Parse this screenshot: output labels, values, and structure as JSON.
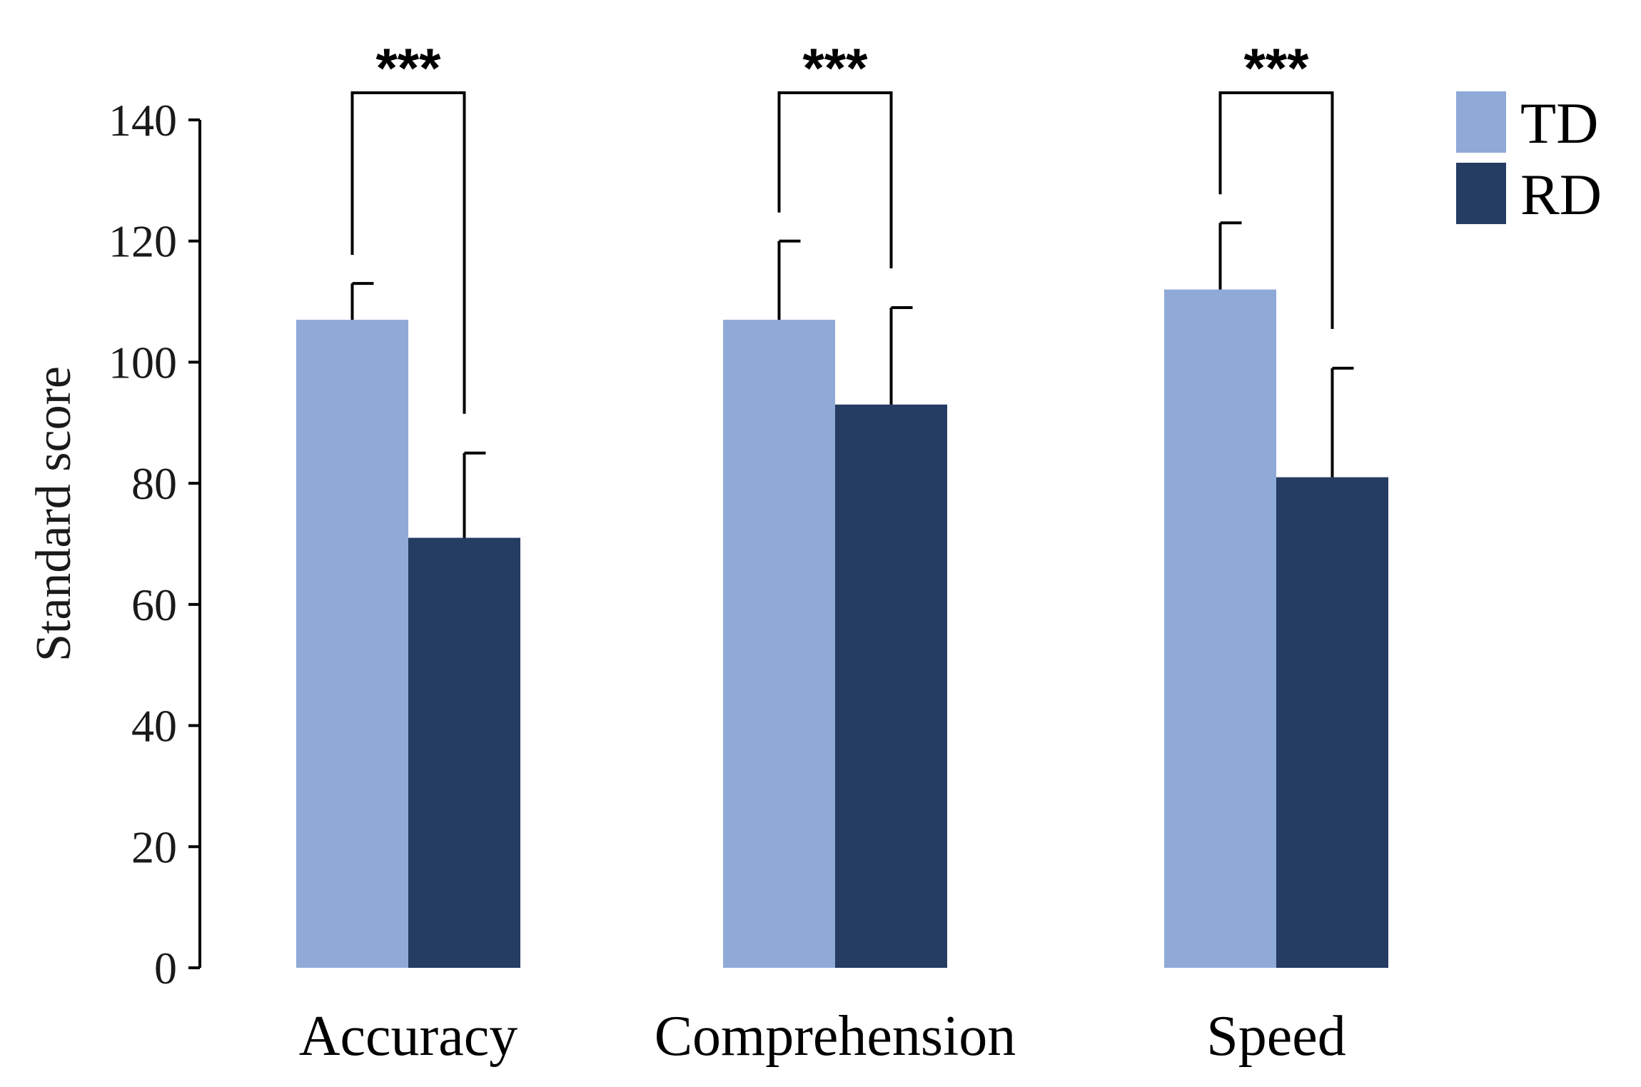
{
  "chart_data": {
    "type": "bar",
    "title": "",
    "xlabel": "",
    "ylabel": "Standard score",
    "ylim": [
      0,
      140
    ],
    "yticks": [
      "0",
      "20",
      "40",
      "60",
      "80",
      "100",
      "120",
      "140"
    ],
    "grid": false,
    "legend_position": "top-right",
    "categories": [
      "Accuracy",
      "Comprehension",
      "Speed"
    ],
    "series": [
      {
        "name": "TD",
        "color": "#8faad7",
        "values": [
          107,
          107,
          112
        ],
        "errors": [
          6,
          13,
          11
        ]
      },
      {
        "name": "RD",
        "color": "#253c63",
        "values": [
          71,
          93,
          81
        ],
        "errors": [
          14,
          16,
          18
        ]
      }
    ],
    "significance": [
      "***",
      "***",
      "***"
    ]
  }
}
